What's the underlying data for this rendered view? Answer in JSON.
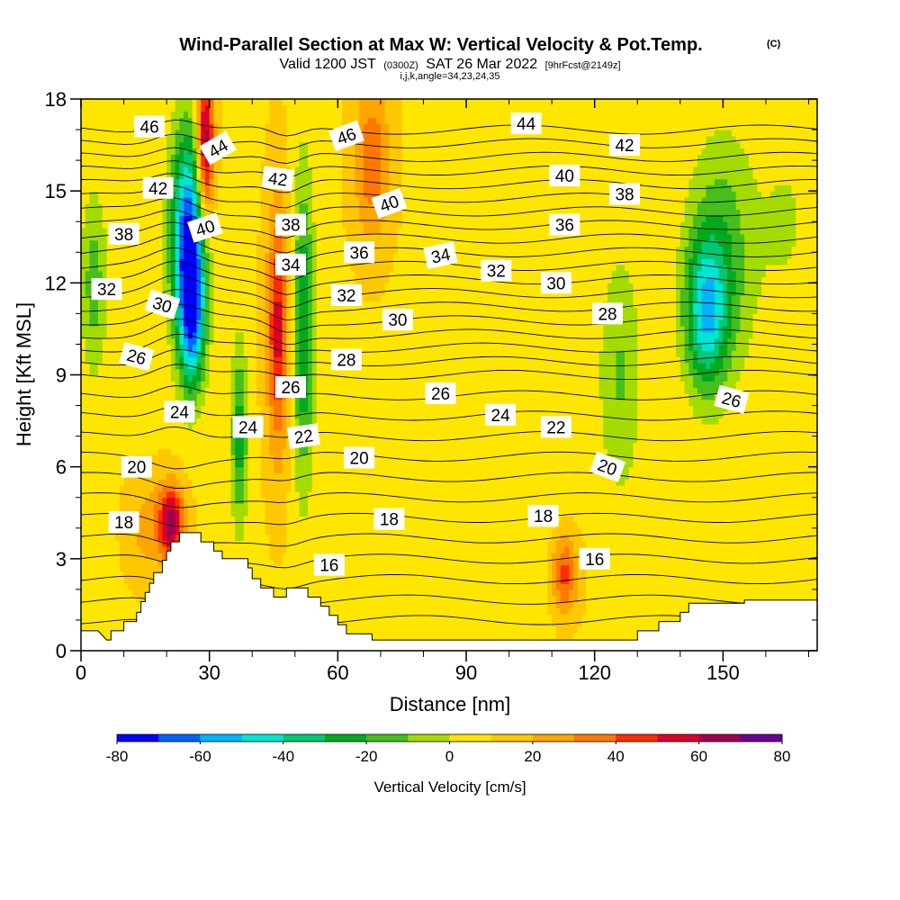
{
  "header": {
    "title": "Wind-Parallel Section at Max W: Vertical Velocity & Pot.Temp.",
    "copyright_mark": "(C)",
    "valid_prefix": "Valid 1200 JST",
    "valid_utc": "(0300Z)",
    "valid_date": "SAT 26 Mar 2022",
    "forecast_info": "[9hrFcst@2149z]",
    "grid_info": "i,j,k,angle=34,23,24,35"
  },
  "chart_data": {
    "type": "heatmap",
    "xlabel": "Distance [nm]",
    "ylabel": "Height [Kft MSL]",
    "xlim": [
      0,
      172
    ],
    "ylim": [
      0,
      18
    ],
    "x_ticks": [
      0,
      30,
      60,
      90,
      120,
      150
    ],
    "y_ticks": [
      0,
      3,
      6,
      9,
      12,
      15,
      18
    ],
    "grid": false,
    "colorbar": {
      "title": "Vertical Velocity [cm/s]",
      "placement": "bottom",
      "labels": [
        "-80",
        "-60",
        "-40",
        "-20",
        "0",
        "20",
        "40",
        "60",
        "80"
      ],
      "levels": [
        -80,
        -70,
        -60,
        -50,
        -40,
        -30,
        -20,
        -10,
        0,
        10,
        20,
        30,
        40,
        50,
        60,
        70,
        80
      ],
      "colors": [
        "#0000ff",
        "#0063ff",
        "#00b4ff",
        "#00e6d2",
        "#00c873",
        "#00aa1e",
        "#46be1e",
        "#a5dc00",
        "#ffe600",
        "#ffc800",
        "#ffa500",
        "#ff7800",
        "#ff2d00",
        "#dc0028",
        "#a00050",
        "#690096"
      ]
    },
    "vertical_velocity_features": [
      {
        "x": 25,
        "y": 13.5,
        "wx": 4,
        "wy": 3.5,
        "w": -75
      },
      {
        "x": 26,
        "y": 11,
        "wx": 3,
        "wy": 2.5,
        "w": -55
      },
      {
        "x": 29,
        "y": 16.5,
        "wx": 2,
        "wy": 2.5,
        "w": 65
      },
      {
        "x": 21,
        "y": 4.2,
        "wx": 3,
        "wy": 1.2,
        "w": 60
      },
      {
        "x": 15,
        "y": 4,
        "wx": 4,
        "wy": 1.5,
        "w": 15
      },
      {
        "x": 46,
        "y": 10.5,
        "wx": 2.5,
        "wy": 4,
        "w": 45
      },
      {
        "x": 52,
        "y": 10.5,
        "wx": 2.5,
        "wy": 5,
        "w": -40
      },
      {
        "x": 37,
        "y": 7,
        "wx": 2,
        "wy": 3,
        "w": -35
      },
      {
        "x": 3,
        "y": 12,
        "wx": 3,
        "wy": 3,
        "w": -25
      },
      {
        "x": 68,
        "y": 16,
        "wx": 4,
        "wy": 2.5,
        "w": 30
      },
      {
        "x": 113,
        "y": 2.5,
        "wx": 3,
        "wy": 1.3,
        "w": 35
      },
      {
        "x": 126,
        "y": 9,
        "wx": 5,
        "wy": 4,
        "w": -20
      },
      {
        "x": 146,
        "y": 11,
        "wx": 5,
        "wy": 2.5,
        "w": -50
      },
      {
        "x": 150,
        "y": 13,
        "wx": 8,
        "wy": 4,
        "w": -25
      },
      {
        "x": 104,
        "y": 9,
        "wx": 10,
        "wy": 8,
        "w": -8
      },
      {
        "x": 165,
        "y": 14,
        "wx": 6,
        "wy": 3,
        "w": -10
      }
    ],
    "potential_temperature": {
      "levels": [
        16,
        17,
        18,
        19,
        20,
        21,
        22,
        23,
        24,
        25,
        26,
        27,
        28,
        29,
        30,
        31,
        32,
        33,
        34,
        35,
        36,
        37,
        38,
        39,
        40,
        41,
        42,
        43,
        44,
        45,
        46
      ],
      "labels": [
        {
          "text": "46",
          "x": 16,
          "y": 17.1
        },
        {
          "text": "44",
          "x": 32,
          "y": 16.4,
          "angle": -30
        },
        {
          "text": "42",
          "x": 18,
          "y": 15.1
        },
        {
          "text": "40",
          "x": 29,
          "y": 13.8,
          "angle": -18
        },
        {
          "text": "38",
          "x": 10,
          "y": 13.6
        },
        {
          "text": "32",
          "x": 6,
          "y": 11.8
        },
        {
          "text": "30",
          "x": 19,
          "y": 11.3,
          "angle": 18
        },
        {
          "text": "26",
          "x": 13,
          "y": 9.6,
          "angle": 15
        },
        {
          "text": "24",
          "x": 23,
          "y": 7.8
        },
        {
          "text": "20",
          "x": 13,
          "y": 6.0
        },
        {
          "text": "18",
          "x": 10,
          "y": 4.2
        },
        {
          "text": "42",
          "x": 46,
          "y": 15.4,
          "angle": 8
        },
        {
          "text": "38",
          "x": 49,
          "y": 13.9
        },
        {
          "text": "34",
          "x": 49,
          "y": 12.6
        },
        {
          "text": "26",
          "x": 49,
          "y": 8.6
        },
        {
          "text": "22",
          "x": 52,
          "y": 7.0,
          "angle": -8
        },
        {
          "text": "24",
          "x": 39,
          "y": 7.3
        },
        {
          "text": "46",
          "x": 62,
          "y": 16.8,
          "angle": -20
        },
        {
          "text": "40",
          "x": 72,
          "y": 14.6,
          "angle": -20
        },
        {
          "text": "36",
          "x": 65,
          "y": 13.0
        },
        {
          "text": "32",
          "x": 62,
          "y": 11.6
        },
        {
          "text": "28",
          "x": 62,
          "y": 9.5
        },
        {
          "text": "20",
          "x": 65,
          "y": 6.3
        },
        {
          "text": "16",
          "x": 58,
          "y": 2.8
        },
        {
          "text": "34",
          "x": 84,
          "y": 12.9,
          "angle": -12
        },
        {
          "text": "30",
          "x": 74,
          "y": 10.8
        },
        {
          "text": "18",
          "x": 72,
          "y": 4.3
        },
        {
          "text": "26",
          "x": 84,
          "y": 8.4
        },
        {
          "text": "32",
          "x": 97,
          "y": 12.4
        },
        {
          "text": "24",
          "x": 98,
          "y": 7.7
        },
        {
          "text": "44",
          "x": 104,
          "y": 17.2
        },
        {
          "text": "40",
          "x": 113,
          "y": 15.5
        },
        {
          "text": "36",
          "x": 113,
          "y": 13.9
        },
        {
          "text": "30",
          "x": 111,
          "y": 12.0
        },
        {
          "text": "22",
          "x": 111,
          "y": 7.3
        },
        {
          "text": "18",
          "x": 108,
          "y": 4.4
        },
        {
          "text": "16",
          "x": 120,
          "y": 3.0
        },
        {
          "text": "42",
          "x": 127,
          "y": 16.5
        },
        {
          "text": "38",
          "x": 127,
          "y": 14.9
        },
        {
          "text": "28",
          "x": 123,
          "y": 11.0
        },
        {
          "text": "20",
          "x": 123,
          "y": 6.0,
          "angle": 20
        },
        {
          "text": "26",
          "x": 152,
          "y": 8.2,
          "angle": 15
        }
      ]
    },
    "terrain_profile": [
      [
        0,
        0.65
      ],
      [
        4,
        0.65
      ],
      [
        6,
        0.35
      ],
      [
        7,
        0.35
      ],
      [
        7,
        0.65
      ],
      [
        10,
        0.65
      ],
      [
        10,
        0.95
      ],
      [
        13,
        0.95
      ],
      [
        13,
        1.25
      ],
      [
        14,
        1.25
      ],
      [
        14,
        1.6
      ],
      [
        15,
        1.6
      ],
      [
        15,
        1.9
      ],
      [
        16,
        1.9
      ],
      [
        16,
        2.2
      ],
      [
        17,
        2.2
      ],
      [
        17,
        2.55
      ],
      [
        19,
        2.55
      ],
      [
        19,
        2.95
      ],
      [
        20,
        2.95
      ],
      [
        20,
        3.25
      ],
      [
        21,
        3.25
      ],
      [
        21,
        3.55
      ],
      [
        23,
        3.55
      ],
      [
        23,
        3.85
      ],
      [
        28,
        3.85
      ],
      [
        28,
        3.55
      ],
      [
        31,
        3.55
      ],
      [
        31,
        3.25
      ],
      [
        33,
        3.25
      ],
      [
        33,
        3.0
      ],
      [
        39,
        3.0
      ],
      [
        39,
        2.7
      ],
      [
        40,
        2.7
      ],
      [
        40,
        2.35
      ],
      [
        42,
        2.35
      ],
      [
        42,
        2.05
      ],
      [
        45,
        2.05
      ],
      [
        45,
        1.75
      ],
      [
        48,
        1.75
      ],
      [
        48,
        2.05
      ],
      [
        53,
        2.05
      ],
      [
        53,
        1.75
      ],
      [
        56,
        1.75
      ],
      [
        56,
        1.45
      ],
      [
        58,
        1.45
      ],
      [
        58,
        1.15
      ],
      [
        60,
        1.15
      ],
      [
        60,
        0.85
      ],
      [
        62,
        0.85
      ],
      [
        62,
        0.55
      ],
      [
        68,
        0.55
      ],
      [
        68,
        0.35
      ],
      [
        110,
        0.35
      ],
      [
        110,
        0.35
      ],
      [
        130,
        0.35
      ],
      [
        130,
        0.65
      ],
      [
        135,
        0.65
      ],
      [
        135,
        0.95
      ],
      [
        140,
        0.95
      ],
      [
        140,
        1.25
      ],
      [
        142,
        1.25
      ],
      [
        142,
        1.55
      ],
      [
        155,
        1.55
      ],
      [
        155,
        1.65
      ],
      [
        172,
        1.65
      ]
    ]
  }
}
